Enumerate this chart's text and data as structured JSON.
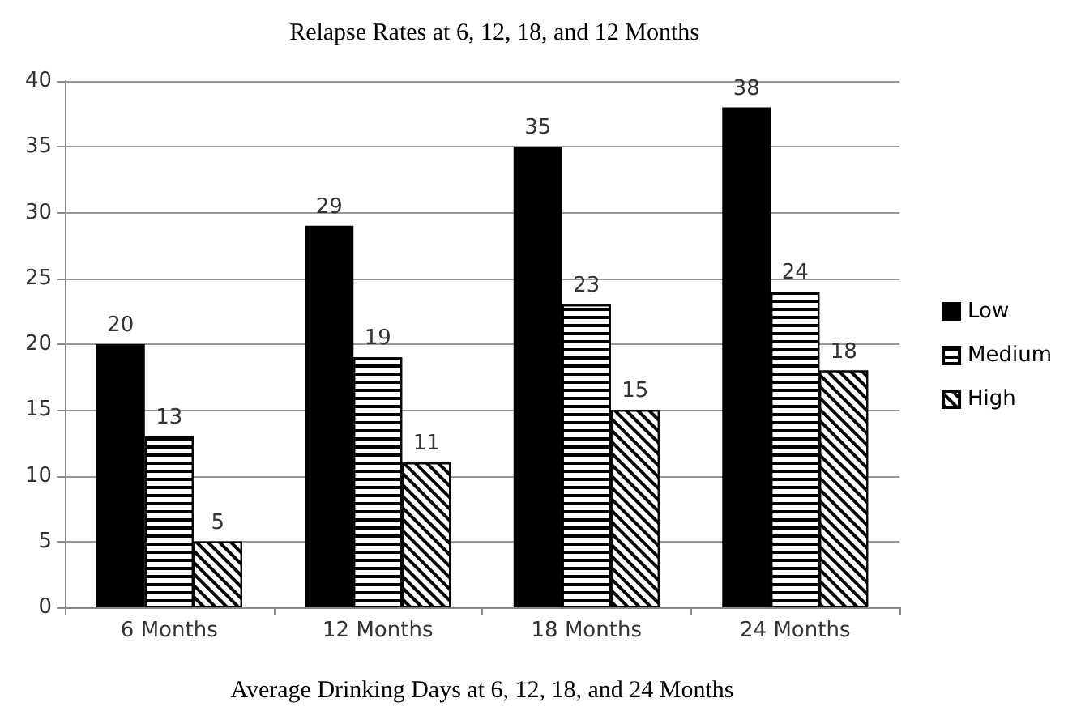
{
  "chart_data": {
    "type": "bar",
    "title": "Relapse Rates at 6, 12, 18, and 12 Months",
    "xlabel": "Average Drinking Days at 6, 12, 18, and 24 Months",
    "categories": [
      "6 Months",
      "12 Months",
      "18 Months",
      "24 Months"
    ],
    "series": [
      {
        "name": "Low",
        "color": "#000000",
        "values": [
          20,
          29,
          35,
          38
        ]
      },
      {
        "name": "Medium",
        "color": "#ffffff",
        "values": [
          13,
          19,
          23,
          24
        ]
      },
      {
        "name": "High",
        "color": "#ffffff",
        "values": [
          5,
          11,
          15,
          18
        ]
      }
    ],
    "ylim": [
      0,
      40
    ],
    "yticks": [
      0,
      5,
      10,
      15,
      20,
      25,
      30,
      35,
      40
    ],
    "grid": "y",
    "legend": "right",
    "data_labels": true
  }
}
